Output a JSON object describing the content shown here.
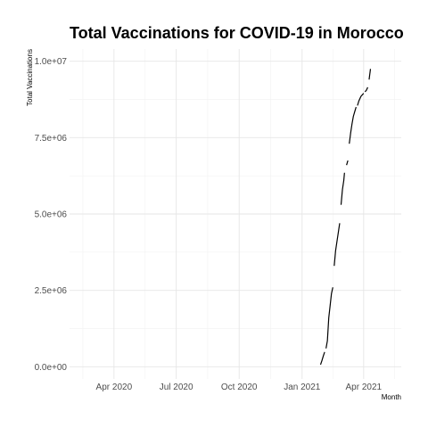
{
  "chart_data": {
    "type": "line",
    "title": "Total Vaccinations for COVID-19 in Morocco",
    "xlabel": "Month",
    "ylabel": "Total Vaccinations",
    "xlim": [
      "2020-01-27",
      "2021-05-26"
    ],
    "ylim": [
      -400000,
      10400000
    ],
    "x_ticks": [
      {
        "date": "2020-04-01",
        "label": "Apr 2020"
      },
      {
        "date": "2020-07-01",
        "label": "Jul 2020"
      },
      {
        "date": "2020-10-01",
        "label": "Oct 2020"
      },
      {
        "date": "2021-01-01",
        "label": "Jan 2021"
      },
      {
        "date": "2021-04-01",
        "label": "Apr 2021"
      }
    ],
    "y_ticks": [
      {
        "value": 0,
        "label": "0.0e+00"
      },
      {
        "value": 2500000,
        "label": "2.5e+06"
      },
      {
        "value": 5000000,
        "label": "5.0e+06"
      },
      {
        "value": 7500000,
        "label": "7.5e+06"
      },
      {
        "value": 10000000,
        "label": "1.0e+07"
      }
    ],
    "grid": true,
    "legend": "none",
    "line_color": "#000000",
    "series": [
      {
        "segments": [
          [
            {
              "x": "2021-01-28",
              "y": 70000
            },
            {
              "x": "2021-01-30",
              "y": 200000
            },
            {
              "x": "2021-02-01",
              "y": 350000
            },
            {
              "x": "2021-02-03",
              "y": 480000
            }
          ],
          [
            {
              "x": "2021-02-05",
              "y": 600000
            },
            {
              "x": "2021-02-07",
              "y": 850000
            },
            {
              "x": "2021-02-09",
              "y": 1600000
            },
            {
              "x": "2021-02-11",
              "y": 2000000
            },
            {
              "x": "2021-02-13",
              "y": 2400000
            },
            {
              "x": "2021-02-15",
              "y": 2600000
            }
          ],
          [
            {
              "x": "2021-02-17",
              "y": 3300000
            },
            {
              "x": "2021-02-19",
              "y": 3800000
            },
            {
              "x": "2021-02-21",
              "y": 4100000
            },
            {
              "x": "2021-02-23",
              "y": 4400000
            },
            {
              "x": "2021-02-25",
              "y": 4700000
            }
          ],
          [
            {
              "x": "2021-02-27",
              "y": 5300000
            },
            {
              "x": "2021-03-01",
              "y": 5800000
            },
            {
              "x": "2021-03-03",
              "y": 6100000
            },
            {
              "x": "2021-03-04",
              "y": 6350000
            }
          ],
          [
            {
              "x": "2021-03-07",
              "y": 6600000
            },
            {
              "x": "2021-03-09",
              "y": 6750000
            }
          ],
          [
            {
              "x": "2021-03-11",
              "y": 7300000
            },
            {
              "x": "2021-03-13",
              "y": 7650000
            },
            {
              "x": "2021-03-15",
              "y": 7950000
            },
            {
              "x": "2021-03-17",
              "y": 8200000
            },
            {
              "x": "2021-03-19",
              "y": 8350000
            },
            {
              "x": "2021-03-21",
              "y": 8500000
            }
          ],
          [
            {
              "x": "2021-03-23",
              "y": 8550000
            },
            {
              "x": "2021-03-25",
              "y": 8700000
            },
            {
              "x": "2021-03-28",
              "y": 8850000
            },
            {
              "x": "2021-04-01",
              "y": 8950000
            }
          ],
          [
            {
              "x": "2021-04-03",
              "y": 9000000
            },
            {
              "x": "2021-04-05",
              "y": 9050000
            },
            {
              "x": "2021-04-07",
              "y": 9150000
            }
          ],
          [
            {
              "x": "2021-04-09",
              "y": 9400000
            },
            {
              "x": "2021-04-11",
              "y": 9750000
            }
          ]
        ]
      }
    ]
  }
}
